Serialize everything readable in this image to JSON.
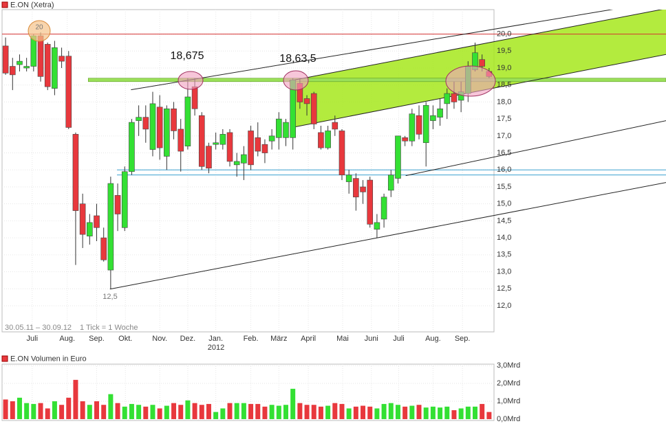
{
  "chart_data": [
    {
      "type": "candlestick",
      "title": "E.ON (Xetra)",
      "subtitle": "30.05.11 – 30.09.12",
      "note": "1 Tick = 1 Woche",
      "up_color": "#33e033",
      "down_color": "#e8383d",
      "x": [
        0,
        1,
        2,
        3,
        4,
        5,
        6,
        7,
        8,
        9,
        10,
        11,
        12,
        13,
        14,
        15,
        16,
        17,
        18,
        19,
        20,
        21,
        22,
        23,
        24,
        25,
        26,
        27,
        28,
        29,
        30,
        31,
        32,
        33,
        34,
        35,
        36,
        37,
        38,
        39,
        40,
        41,
        42,
        43,
        44,
        45,
        46,
        47,
        48,
        49,
        50,
        51,
        52,
        53,
        54,
        55,
        56,
        57,
        58,
        59,
        60,
        61,
        62,
        63,
        64,
        65,
        66,
        67,
        68,
        69
      ],
      "open": [
        19.65,
        19.05,
        19.1,
        19.0,
        19.05,
        19.95,
        19.7,
        18.4,
        19.35,
        19.35,
        17.05,
        15.0,
        14.05,
        14.65,
        14.0,
        13.05,
        15.25,
        14.3,
        15.95,
        17.45,
        17.55,
        16.6,
        17.85,
        16.4,
        17.8,
        17.2,
        16.7,
        18.45,
        17.6,
        16.7,
        16.75,
        16.75,
        17.1,
        16.15,
        16.2,
        17.15,
        16.95,
        16.75,
        16.85,
        16.95,
        16.95,
        16.95,
        18.55,
        18.1,
        18.25,
        17.1,
        16.65,
        17.4,
        17.15,
        15.65,
        15.75,
        15.5,
        15.7,
        14.25,
        14.55,
        15.4,
        15.75,
        16.95,
        16.85,
        17.6,
        16.8,
        17.45,
        17.55,
        17.95,
        18.25,
        18.05,
        18.25,
        18.95,
        19.25,
        18.9
      ],
      "high": [
        19.9,
        19.3,
        19.4,
        19.3,
        20.0,
        20.05,
        19.75,
        19.8,
        19.6,
        19.5,
        17.1,
        15.3,
        14.7,
        15.0,
        14.3,
        15.8,
        15.6,
        16.1,
        17.5,
        17.9,
        17.9,
        18.3,
        18.2,
        17.9,
        18.0,
        17.5,
        18.7,
        18.7,
        17.7,
        16.8,
        17.1,
        17.2,
        17.2,
        16.5,
        16.7,
        17.3,
        17.4,
        16.9,
        17.2,
        17.7,
        17.5,
        18.7,
        18.7,
        18.2,
        18.3,
        17.3,
        17.3,
        17.6,
        17.2,
        16.0,
        15.9,
        15.7,
        15.8,
        14.7,
        15.3,
        16.0,
        17.0,
        17.0,
        17.8,
        17.9,
        18.0,
        17.9,
        18.1,
        18.4,
        18.6,
        18.6,
        19.2,
        19.75,
        19.4,
        19.0
      ],
      "low": [
        18.8,
        18.35,
        18.9,
        18.9,
        18.9,
        18.6,
        18.35,
        18.2,
        19.0,
        17.2,
        13.2,
        13.7,
        13.8,
        13.9,
        13.3,
        12.5,
        14.2,
        14.2,
        15.85,
        17.0,
        16.8,
        16.4,
        16.3,
        16.0,
        16.9,
        15.95,
        16.6,
        17.6,
        16.0,
        15.9,
        16.6,
        16.6,
        16.1,
        15.8,
        15.7,
        16.0,
        16.4,
        16.2,
        16.6,
        16.6,
        16.7,
        16.6,
        17.8,
        17.6,
        17.2,
        16.6,
        16.6,
        17.0,
        15.7,
        15.3,
        14.8,
        15.0,
        14.3,
        14.0,
        14.3,
        15.2,
        15.6,
        16.7,
        16.7,
        16.9,
        16.1,
        17.2,
        17.3,
        17.5,
        17.8,
        17.7,
        18.0,
        18.9,
        18.9,
        18.7
      ],
      "close": [
        18.85,
        18.8,
        19.2,
        19.05,
        19.95,
        18.75,
        18.45,
        19.6,
        19.2,
        17.25,
        14.8,
        14.1,
        14.45,
        14.3,
        13.35,
        15.6,
        14.7,
        15.95,
        17.4,
        17.55,
        17.2,
        17.95,
        16.65,
        17.8,
        17.15,
        16.55,
        18.15,
        17.8,
        16.1,
        16.05,
        16.8,
        17.05,
        16.25,
        16.25,
        16.45,
        16.15,
        16.55,
        16.5,
        17.0,
        17.5,
        17.4,
        18.65,
        18.0,
        17.95,
        17.35,
        16.65,
        17.15,
        17.2,
        15.85,
        15.85,
        15.2,
        15.35,
        14.4,
        14.45,
        15.2,
        15.85,
        17.0,
        16.85,
        17.65,
        17.05,
        17.9,
        17.6,
        17.8,
        18.25,
        18.0,
        18.3,
        19.05,
        19.45,
        19.05,
        18.75
      ],
      "xlim": [
        -0.5,
        69.7
      ],
      "ylim": [
        11.23,
        20.72
      ],
      "yticks": [
        {
          "value": 12,
          "label": "12,0"
        },
        {
          "value": 12.5,
          "label": "12,5"
        },
        {
          "value": 13,
          "label": "13,0"
        },
        {
          "value": 13.5,
          "label": "13,5"
        },
        {
          "value": 14,
          "label": "14,0"
        },
        {
          "value": 14.5,
          "label": "14,5"
        },
        {
          "value": 15,
          "label": "15,0"
        },
        {
          "value": 15.5,
          "label": "15,5"
        },
        {
          "value": 16,
          "label": "16,0"
        },
        {
          "value": 16.5,
          "label": "16,5"
        },
        {
          "value": 17,
          "label": "17,0"
        },
        {
          "value": 17.5,
          "label": "17,5"
        },
        {
          "value": 18,
          "label": "18,0"
        },
        {
          "value": 18.5,
          "label": "18,5"
        },
        {
          "value": 19,
          "label": "19,0"
        },
        {
          "value": 19.5,
          "label": "19,5"
        },
        {
          "value": 20,
          "label": "20,0"
        }
      ],
      "xticks": [
        {
          "value": 3.8,
          "label": "Juli"
        },
        {
          "value": 8.8,
          "label": "Aug."
        },
        {
          "value": 13,
          "label": "Sep."
        },
        {
          "value": 17.1,
          "label": "Okt."
        },
        {
          "value": 22,
          "label": "Nov."
        },
        {
          "value": 26,
          "label": "Dez."
        },
        {
          "value": 30,
          "label": "Jan."
        },
        {
          "value": 35,
          "label": "Feb."
        },
        {
          "value": 39,
          "label": "März"
        },
        {
          "value": 43.2,
          "label": "April"
        },
        {
          "value": 48.1,
          "label": "Mai"
        },
        {
          "value": 52.2,
          "label": "Juni"
        },
        {
          "value": 56.1,
          "label": "Juli"
        },
        {
          "value": 61,
          "label": "Aug."
        },
        {
          "value": 65.2,
          "label": "Sep."
        }
      ],
      "grid": true,
      "annotations": [
        "18,675",
        "18,63,5",
        "20",
        "12,5",
        "2012"
      ],
      "hlines": [
        {
          "value": 20,
          "start": -0.5,
          "color": "#d43030"
        },
        {
          "value": 18.65,
          "start": 11.8,
          "color": "#9be05a"
        },
        {
          "value": 16.0,
          "start": 15.9,
          "color": "#3aa0d0"
        },
        {
          "value": 15.85,
          "start": 15.9,
          "color": "#3aa0d0"
        }
      ],
      "trendlines": [
        [
          [
            14.9,
            12.49
          ],
          [
            94.26,
            15.63
          ]
        ],
        [
          [
            57.1,
            15.83
          ],
          [
            94.26,
            17.45
          ]
        ],
        [
          [
            17.9,
            18.36
          ],
          [
            94.26,
            20.99
          ]
        ],
        [
          [
            40.5,
            18.62
          ],
          [
            94.26,
            20.75
          ]
        ],
        [
          [
            40.9,
            17.25
          ],
          [
            94.26,
            19.4
          ]
        ]
      ],
      "channel_color": "#a6e81c"
    },
    {
      "type": "bar",
      "title": "E.ON Volumen in Euro",
      "values": [
        1.1,
        1.0,
        1.2,
        0.9,
        0.85,
        0.9,
        0.6,
        1.0,
        0.8,
        1.2,
        2.2,
        1.0,
        0.8,
        1.0,
        0.8,
        1.4,
        0.9,
        0.7,
        0.85,
        0.8,
        0.7,
        0.8,
        0.6,
        0.75,
        0.9,
        0.8,
        1.05,
        0.9,
        0.8,
        0.85,
        0.4,
        0.6,
        0.9,
        0.9,
        0.9,
        0.85,
        0.85,
        0.7,
        0.8,
        0.75,
        0.8,
        1.7,
        0.9,
        0.8,
        0.8,
        0.7,
        0.75,
        0.9,
        0.85,
        0.6,
        0.7,
        0.75,
        0.7,
        0.6,
        0.85,
        0.9,
        0.8,
        0.7,
        0.75,
        0.8,
        0.65,
        0.7,
        0.65,
        0.7,
        0.5,
        0.6,
        0.7,
        0.7,
        0.85,
        0.4
      ],
      "ylim": [
        0,
        3.08
      ],
      "yticks": [
        {
          "value": 0,
          "label": "0,0Mrd"
        },
        {
          "value": 1,
          "label": "1,0Mrd"
        },
        {
          "value": 2,
          "label": "2,0Mrd"
        },
        {
          "value": 3,
          "label": "3,0Mrd"
        }
      ]
    }
  ]
}
